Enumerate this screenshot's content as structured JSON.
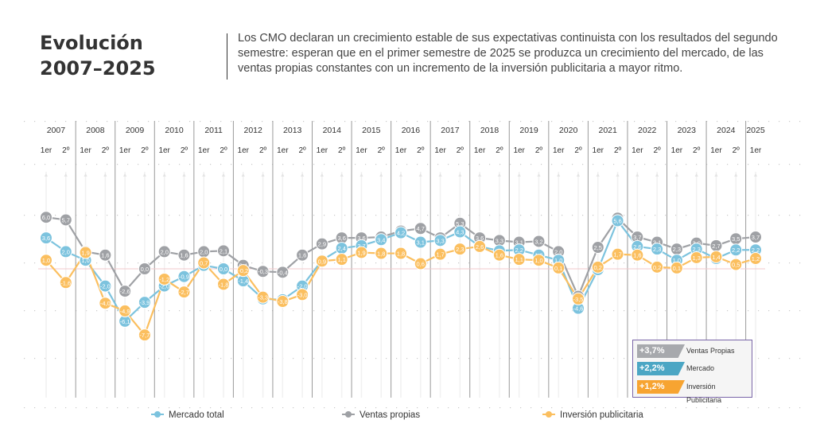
{
  "header": {
    "title_line1": "Evolución",
    "title_line2": "2007–2025",
    "description": "Los CMO declaran un crecimiento estable de sus expectativas continuista con los resultados del segundo semestre: esperan que en el primer semestre de 2025 se produzca un crecimiento del mercado, de las ventas propias constantes con un incremento de la inversión publicitaria a mayor ritmo."
  },
  "chart_data": {
    "type": "line",
    "years": [
      "2007",
      "2008",
      "2009",
      "2010",
      "2011",
      "2012",
      "2013",
      "2014",
      "2015",
      "2016",
      "2017",
      "2018",
      "2019",
      "2020",
      "2021",
      "2022",
      "2023",
      "2024",
      "2025"
    ],
    "semester_labels": [
      "1er",
      "2º"
    ],
    "x": [
      "2007 1er",
      "2007 2º",
      "2008 1er",
      "2008 2º",
      "2009 1er",
      "2009 2º",
      "2010 1er",
      "2010 2º",
      "2011 1er",
      "2011 2º",
      "2012 1er",
      "2012 2º",
      "2013 1er",
      "2013 2º",
      "2014 1er",
      "2014 2º",
      "2015 1er",
      "2015 2º",
      "2016 1er",
      "2016 2º",
      "2017 1er",
      "2017 2º",
      "2018 1er",
      "2018 2º",
      "2019 1er",
      "2019 2º",
      "2020 1er",
      "2020 2º",
      "2021 1er",
      "2021 2º",
      "2022 1er",
      "2022 2º",
      "2023 1er",
      "2023 2º",
      "2024 1er",
      "2024 2º",
      "2025 1er"
    ],
    "series": [
      {
        "name": "Ventas propias",
        "color": "#9fa1a5",
        "values": [
          6.0,
          5.7,
          2.0,
          1.6,
          -2.6,
          0.0,
          2.0,
          1.6,
          2.0,
          2.1,
          0.4,
          -0.3,
          -0.4,
          1.6,
          2.9,
          3.6,
          3.6,
          3.7,
          4.4,
          4.7,
          3.6,
          5.3,
          3.6,
          3.3,
          3.1,
          3.2,
          2.0,
          -3.2,
          2.5,
          5.9,
          3.7,
          3.1,
          2.3,
          3.0,
          2.7,
          3.5,
          3.7
        ]
      },
      {
        "name": "Mercado total",
        "color": "#7cc3de",
        "values": [
          3.6,
          2.0,
          1.0,
          -2.0,
          -6.1,
          -3.9,
          -2.0,
          -0.9,
          0.4,
          0.0,
          -1.4,
          -3.5,
          -3.6,
          -2.0,
          1.0,
          2.4,
          2.7,
          3.4,
          4.2,
          3.1,
          3.3,
          4.3,
          2.6,
          2.1,
          2.2,
          1.6,
          1.0,
          -4.6,
          -0.1,
          5.6,
          2.6,
          2.3,
          1.0,
          2.3,
          1.2,
          2.2,
          2.2
        ]
      },
      {
        "name": "Inversión publicitaria",
        "color": "#fbbf5f",
        "values": [
          1.0,
          -1.6,
          1.9,
          -4.0,
          -4.9,
          -7.7,
          -1.2,
          -2.7,
          0.7,
          -1.8,
          -0.2,
          -3.3,
          -3.8,
          -3.0,
          0.9,
          1.1,
          1.9,
          1.8,
          1.8,
          0.6,
          1.7,
          2.3,
          2.6,
          1.6,
          1.1,
          1.0,
          0.1,
          -3.5,
          0.2,
          1.7,
          1.6,
          0.2,
          0.1,
          1.3,
          1.4,
          0.5,
          1.2
        ]
      }
    ],
    "data_labels": {
      "Ventas propias": [
        "6,0",
        "5,7",
        "2,0",
        "1,6",
        "-2,6",
        "0,0",
        "2,0",
        "1,6",
        "2,0",
        "2,1",
        "0,4",
        "-0,3",
        "-0,4",
        "1,6",
        "2,9",
        "3,6",
        "3,6",
        "3,7",
        "4,4",
        "4,7",
        "3,6",
        "5,3",
        "3,6",
        "3,3",
        "3,1",
        "3,2",
        "2,0",
        "-3,2",
        "2,5",
        "5,9",
        "3,7",
        "3,1",
        "2,3",
        "3,0",
        "2,7",
        "3,5",
        "3,7"
      ],
      "Mercado total": [
        "3,6",
        "2,0",
        "1,0",
        "-2,0",
        "-6,1",
        "-3,9",
        "-2,0",
        "-0,9",
        "0,4",
        "0,0",
        "-1,4",
        "-3,5",
        "-3,6",
        "-2,0",
        "1,0",
        "2,4",
        "2,7",
        "3,4",
        "4,2",
        "3,1",
        "3,3",
        "4,3",
        "2,6",
        "2,1",
        "2,2",
        "1,6",
        "1,0",
        "-4,6",
        "-0,1",
        "5,6",
        "2,6",
        "2,3",
        "1,0",
        "2,3",
        "1,2",
        "2,2",
        "2,2"
      ],
      "Inversión publicitaria": [
        "1,0",
        "-1,6",
        "1,9",
        "-4,0",
        "-4,9",
        "-7,7",
        "-1,2",
        "-2,7",
        "0,7",
        "-1,8",
        "-0,2",
        "-3,3",
        "-3,8",
        "-3,0",
        "0,9",
        "1,1",
        "1,9",
        "1,8",
        "1,8",
        "0,6",
        "1,7",
        "2,3",
        "2,6",
        "1,6",
        "1,1",
        "1,0",
        "0,1",
        "-3,5",
        "0,2",
        "1,7",
        "1,6",
        "0,2",
        "0,1",
        "1,3",
        "1,4",
        "0,5",
        "1,2"
      ]
    },
    "ylim": [
      -9.5,
      8
    ],
    "zero_line": true,
    "grid": false,
    "legend": {
      "position": "bottom",
      "items": [
        "Mercado total",
        "Ventas propias",
        "Inversión publicitaria"
      ]
    }
  },
  "forecast_legend": {
    "items": [
      {
        "value": "+3,7%",
        "label": "Ventas Propias",
        "color": "#a7a9ad"
      },
      {
        "value": "+2,2%",
        "label": "Mercado",
        "color": "#4ba6c4"
      },
      {
        "value": "+1,2%",
        "label": "Inversión Publicitaria",
        "color": "#f7a431"
      }
    ]
  }
}
